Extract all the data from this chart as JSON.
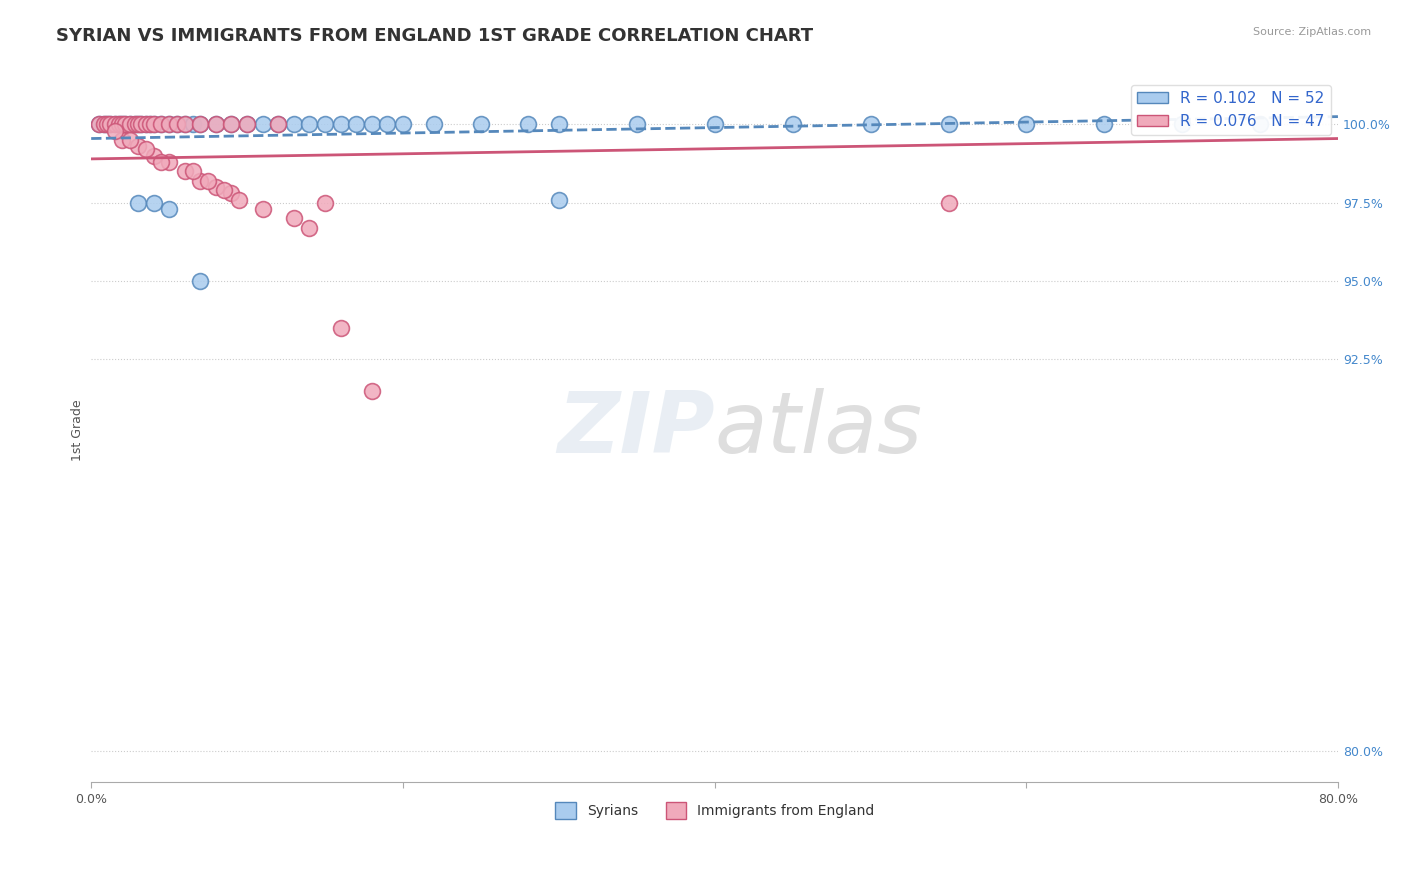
{
  "title": "SYRIAN VS IMMIGRANTS FROM ENGLAND 1ST GRADE CORRELATION CHART",
  "source_text": "Source: ZipAtlas.com",
  "ylabel": "1st Grade",
  "xlim": [
    0.0,
    80.0
  ],
  "ylim": [
    79.0,
    101.5
  ],
  "y_ticks_right": [
    80.0,
    92.5,
    95.0,
    97.5,
    100.0
  ],
  "y_tick_labels_right": [
    "80.0%",
    "92.5%",
    "95.0%",
    "97.5%",
    "100.0%"
  ],
  "syrians_x": [
    0.5,
    0.8,
    1.0,
    1.2,
    1.5,
    1.8,
    2.0,
    2.2,
    2.5,
    2.8,
    3.0,
    3.2,
    3.5,
    3.8,
    4.0,
    4.5,
    5.0,
    5.5,
    6.0,
    6.5,
    7.0,
    8.0,
    9.0,
    10.0,
    11.0,
    12.0,
    13.0,
    14.0,
    15.0,
    16.0,
    17.0,
    18.0,
    19.0,
    20.0,
    22.0,
    25.0,
    28.0,
    30.0,
    35.0,
    40.0,
    45.0,
    50.0,
    55.0,
    60.0,
    65.0,
    70.0,
    75.0,
    3.0,
    4.0,
    5.0,
    30.0,
    7.0
  ],
  "syrians_y": [
    100.0,
    100.0,
    100.0,
    100.0,
    100.0,
    100.0,
    100.0,
    100.0,
    100.0,
    100.0,
    100.0,
    100.0,
    100.0,
    100.0,
    100.0,
    100.0,
    100.0,
    100.0,
    100.0,
    100.0,
    100.0,
    100.0,
    100.0,
    100.0,
    100.0,
    100.0,
    100.0,
    100.0,
    100.0,
    100.0,
    100.0,
    100.0,
    100.0,
    100.0,
    100.0,
    100.0,
    100.0,
    100.0,
    100.0,
    100.0,
    100.0,
    100.0,
    100.0,
    100.0,
    100.0,
    100.0,
    100.0,
    97.5,
    97.5,
    97.3,
    97.6,
    95.0
  ],
  "england_x": [
    0.5,
    0.8,
    1.0,
    1.2,
    1.5,
    1.8,
    2.0,
    2.2,
    2.5,
    2.8,
    3.0,
    3.2,
    3.5,
    3.8,
    4.0,
    4.5,
    5.0,
    5.5,
    6.0,
    7.0,
    8.0,
    9.0,
    10.0,
    12.0,
    2.0,
    3.0,
    4.0,
    5.0,
    6.0,
    7.0,
    8.0,
    9.0,
    55.0,
    15.0,
    1.5,
    2.5,
    3.5,
    4.5,
    6.5,
    7.5,
    8.5,
    9.5,
    11.0,
    13.0,
    14.0,
    16.0,
    18.0
  ],
  "england_y": [
    100.0,
    100.0,
    100.0,
    100.0,
    100.0,
    100.0,
    100.0,
    100.0,
    100.0,
    100.0,
    100.0,
    100.0,
    100.0,
    100.0,
    100.0,
    100.0,
    100.0,
    100.0,
    100.0,
    100.0,
    100.0,
    100.0,
    100.0,
    100.0,
    99.5,
    99.3,
    99.0,
    98.8,
    98.5,
    98.2,
    98.0,
    97.8,
    97.5,
    97.5,
    99.8,
    99.5,
    99.2,
    98.8,
    98.5,
    98.2,
    97.9,
    97.6,
    97.3,
    97.0,
    96.7,
    93.5,
    91.5
  ],
  "syrian_color": "#aaccee",
  "england_color": "#f0aabb",
  "syrian_edge_color": "#5588bb",
  "england_edge_color": "#cc5577",
  "trend_syrian_color": "#5588bb",
  "trend_england_color": "#cc5577",
  "R_syrian": 0.102,
  "N_syrian": 52,
  "R_england": 0.076,
  "N_england": 47,
  "watermark_zip": "ZIP",
  "watermark_atlas": "atlas",
  "background_color": "#ffffff",
  "title_fontsize": 13,
  "axis_label_fontsize": 9,
  "tick_fontsize": 9,
  "legend_fontsize": 11,
  "trend_sy_x0": 0.0,
  "trend_sy_x1": 80.0,
  "trend_sy_y0": 99.55,
  "trend_sy_y1": 100.25,
  "trend_en_x0": 0.0,
  "trend_en_x1": 80.0,
  "trend_en_y0": 98.9,
  "trend_en_y1": 99.55
}
